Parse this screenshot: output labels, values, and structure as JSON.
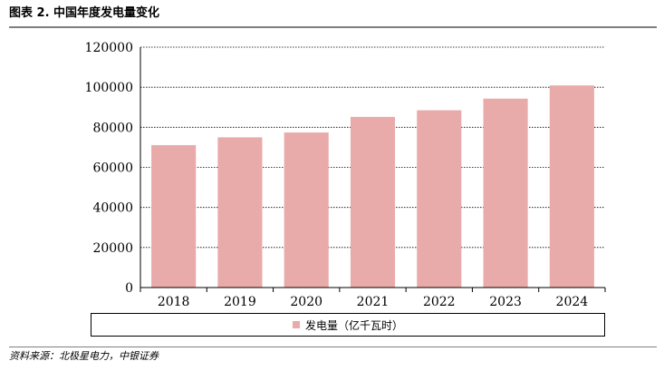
{
  "figure": {
    "title": "图表 2. 中国年度发电量变化",
    "source": "资料来源：北极星电力，中银证券"
  },
  "chart_data": {
    "type": "bar",
    "title": "",
    "xlabel": "",
    "ylabel": "",
    "categories": [
      "2018",
      "2019",
      "2020",
      "2021",
      "2022",
      "2023",
      "2024"
    ],
    "series": [
      {
        "name": "发电量（亿千瓦时）",
        "values": [
          71100,
          75000,
          77400,
          85200,
          88500,
          94300,
          100900
        ],
        "color": "#e9aaaa"
      }
    ],
    "ylim": [
      0,
      120000
    ],
    "yticks": [
      "0",
      "20000",
      "40000",
      "60000",
      "80000",
      "100000",
      "120000"
    ],
    "grid": true,
    "legend": "bottom"
  }
}
